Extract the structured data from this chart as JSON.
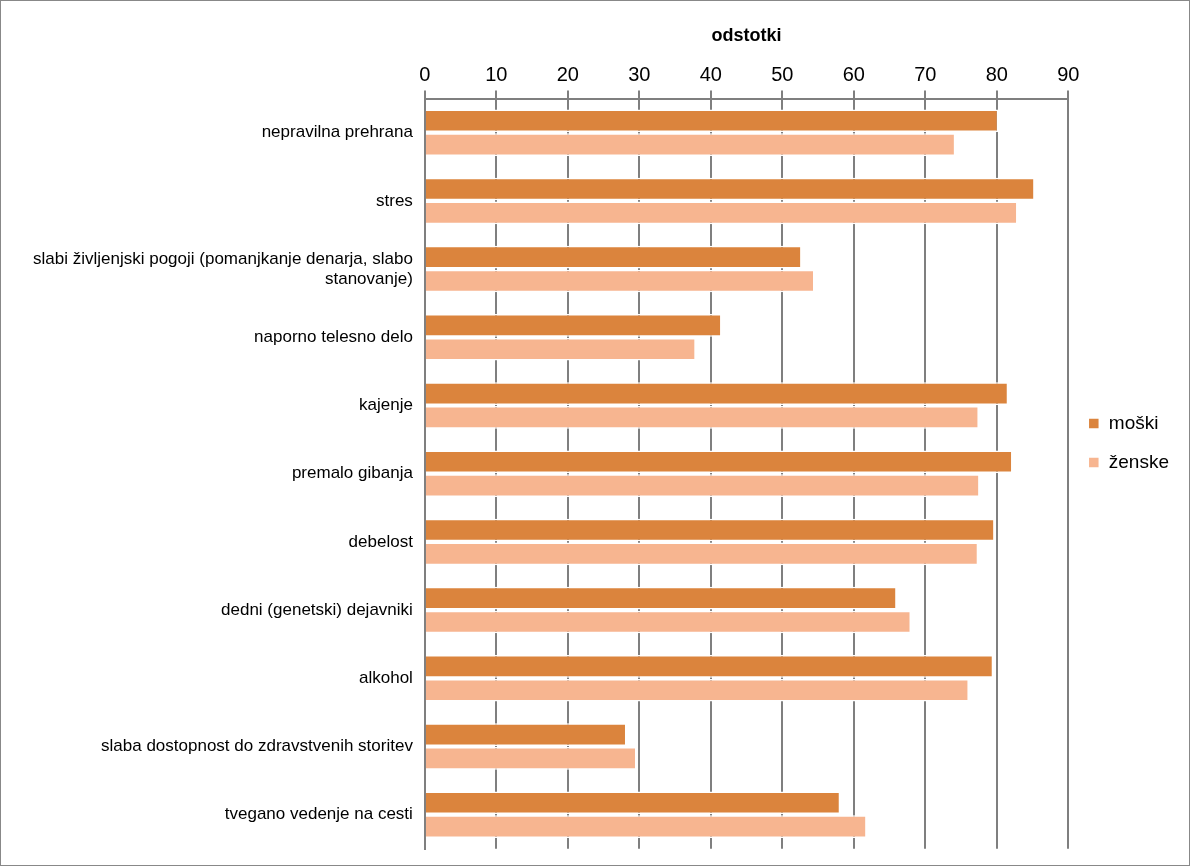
{
  "chart_data": {
    "type": "bar",
    "orientation": "horizontal",
    "xlabel": "odstotki",
    "categories": [
      "nepravilna prehrana",
      "stres",
      "slabi življenjski pogoji (pomanjkanje denarja, slabo stanovanje)",
      "naporno telesno delo",
      "kajenje",
      "premalo gibanja",
      "debelost",
      "dedni (genetski) dejavniki",
      "alkohol",
      "slaba dostopnost do zdravstvenih storitev",
      "tvegano vedenje na cesti"
    ],
    "series": [
      {
        "name": "moški",
        "color": "#db843d",
        "values": [
          80.2,
          85.3,
          52.7,
          41.5,
          81.6,
          82.2,
          79.7,
          66.0,
          79.5,
          28.2,
          58.1
        ]
      },
      {
        "name": "ženske",
        "color": "#f7b590",
        "values": [
          74.2,
          82.9,
          54.5,
          37.9,
          77.5,
          77.6,
          77.4,
          68.0,
          76.1,
          29.6,
          61.8
        ]
      }
    ],
    "xlim": [
      0,
      90
    ],
    "xticks": [
      0,
      10,
      20,
      30,
      40,
      50,
      60,
      70,
      80,
      90
    ],
    "grid": "x",
    "legend": "right"
  }
}
